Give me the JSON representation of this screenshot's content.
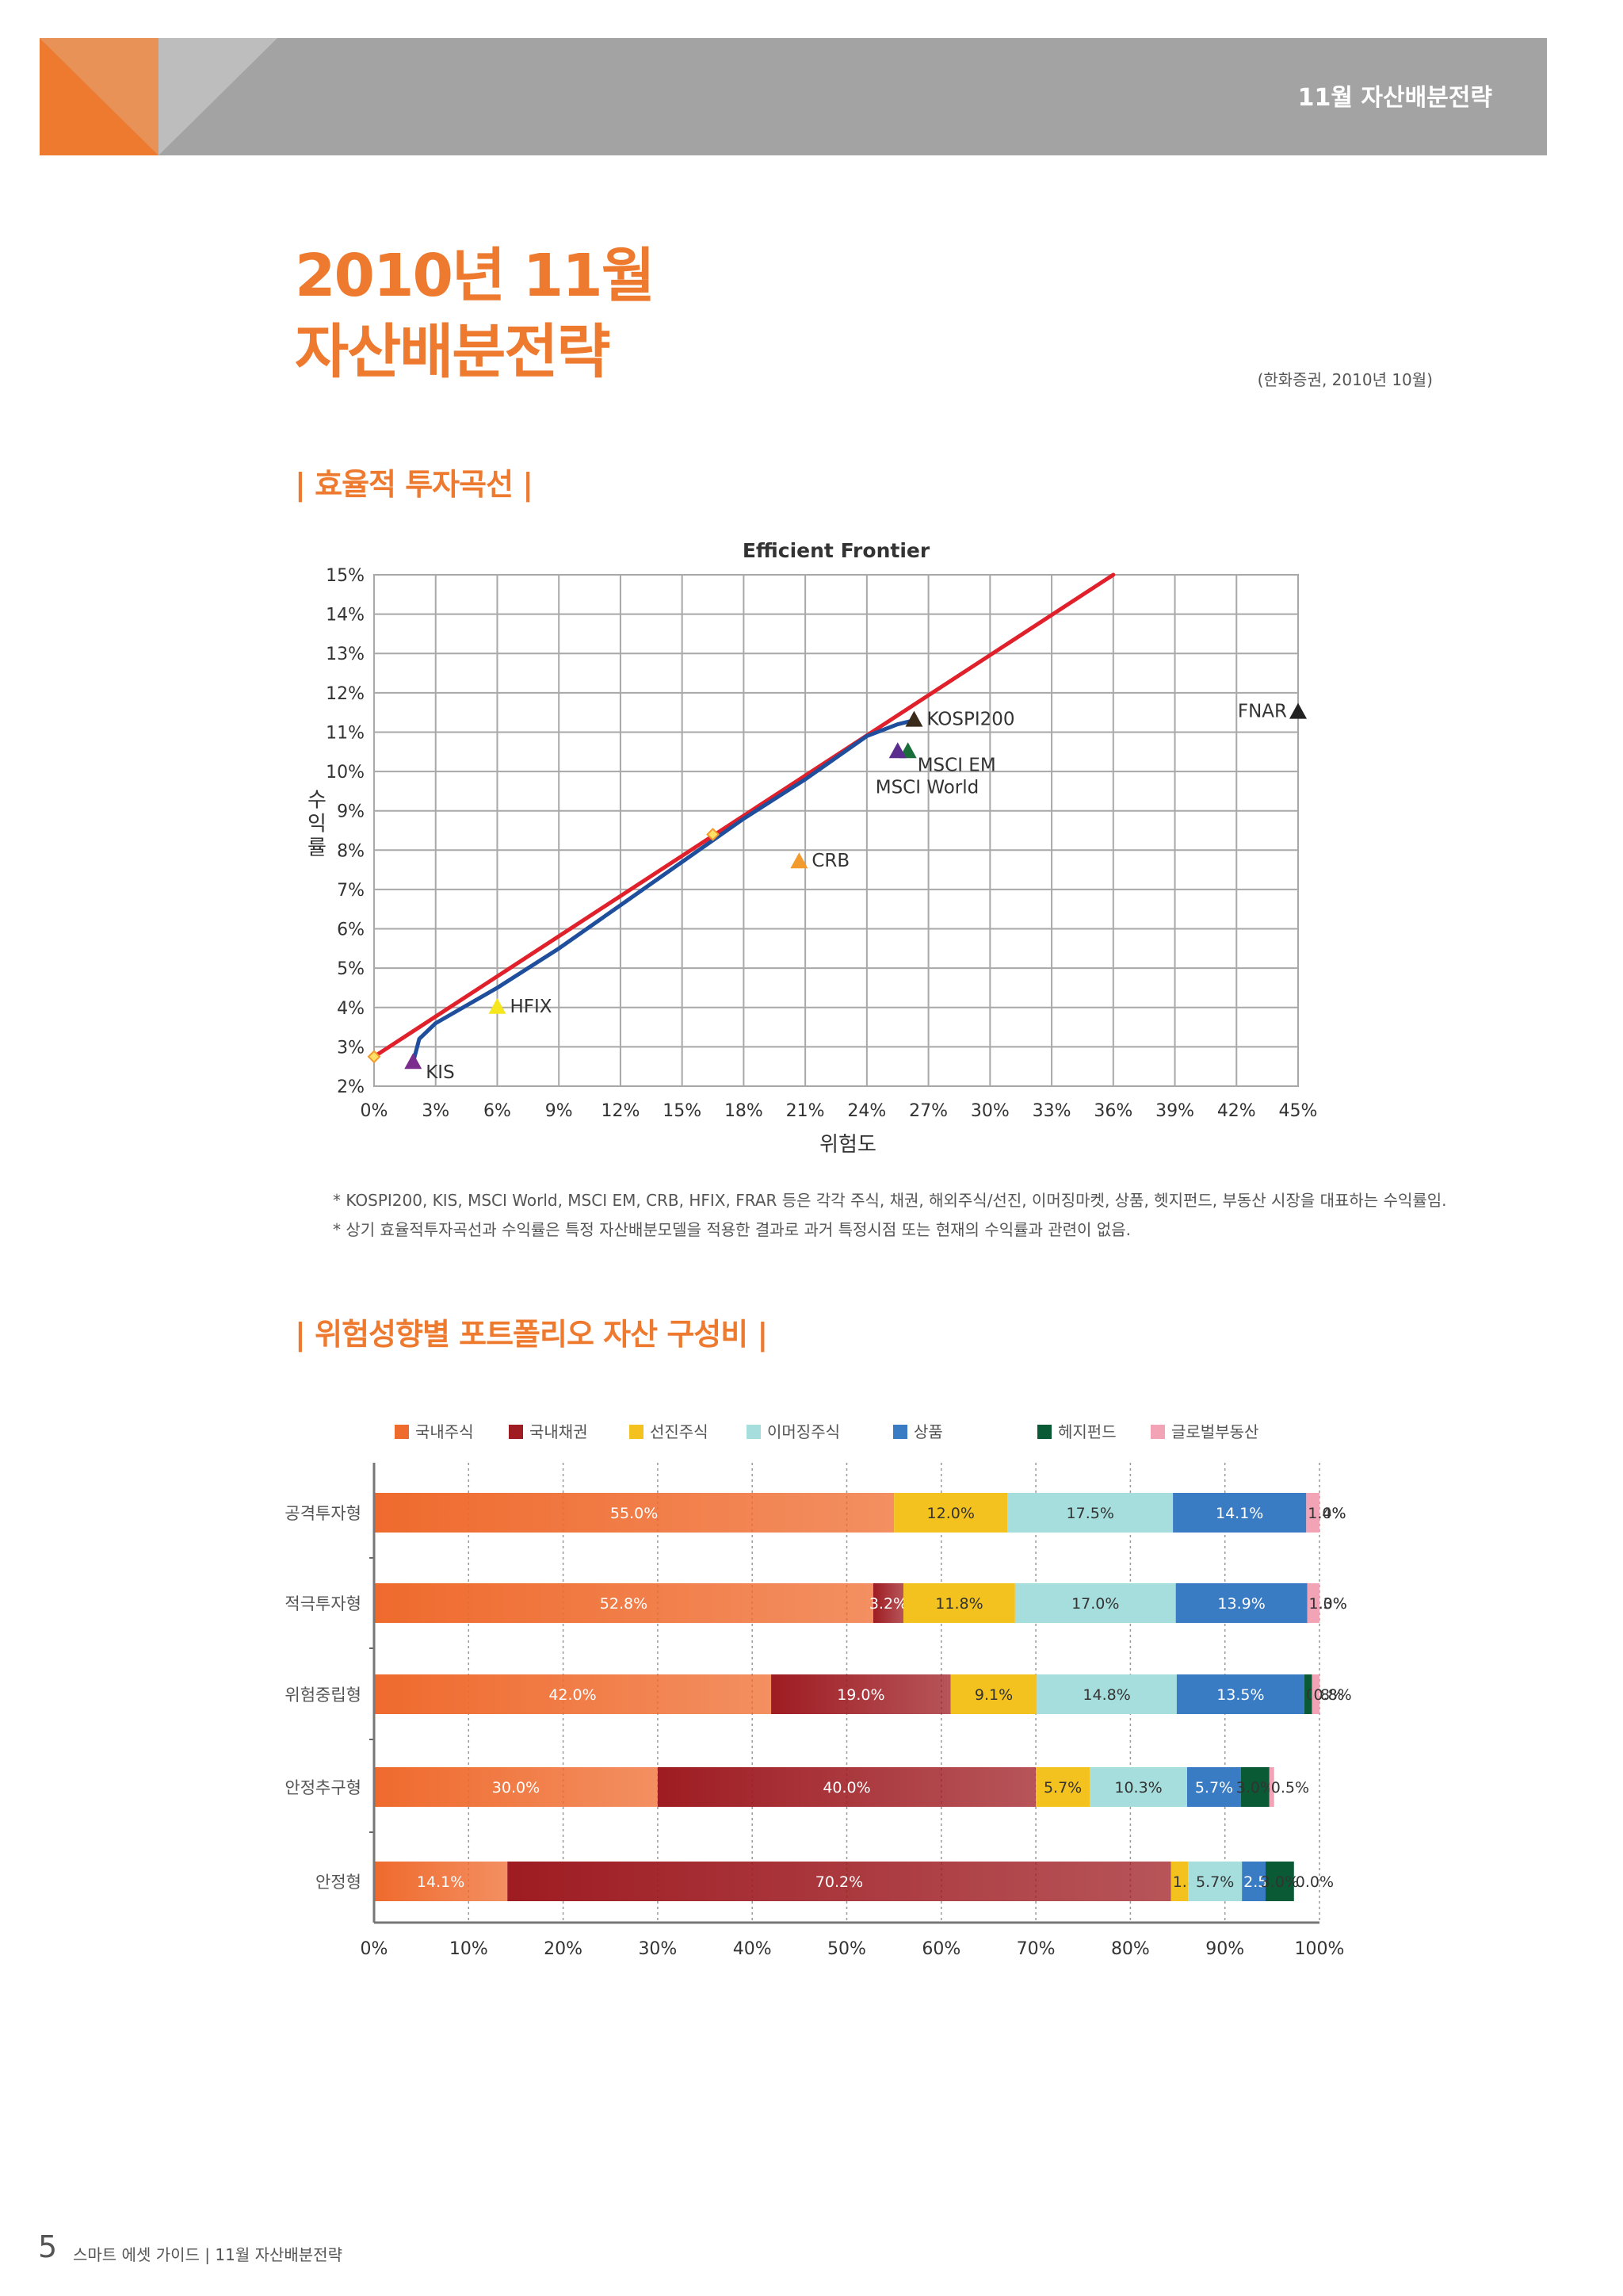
{
  "header": {
    "title": "11월  자산배분전략"
  },
  "page_title": {
    "line1": "2010년 11월",
    "line2": "자산배분전략"
  },
  "source_note": "(한화증권, 2010년 10월)",
  "section1": {
    "title": "| 효율적 투자곡선 |"
  },
  "section2": {
    "title": "| 위험성향별  포트폴리오 자산 구성비 |"
  },
  "footnotes": [
    "* KOSPI200, KIS, MSCI World, MSCI EM, CRB, HFIX, FRAR 등은 각각 주식, 채권, 해외주식/선진, 이머징마켓, 상품, 헷지펀드, 부동산 시장을 대표하는 수익률임.",
    "* 상기 효율적투자곡선과 수익률은 특정 자산배분모델을 적용한 결과로 과거 특정시점 또는 현재의 수익률과 관련이 없음."
  ],
  "footer": {
    "page_number": "5",
    "text": "스마트 에셋 가이드 | 11월 자산배분전략"
  },
  "colors": {
    "orange": "#ee7a2f",
    "header_gray": "#a3a3a3",
    "frontier_line": "#e0202a",
    "frontier_curve": "#1f4e9c"
  },
  "chart_data": [
    {
      "type": "scatter",
      "title": "Efficient Frontier",
      "xlabel": "위험도",
      "ylabel": "수익률",
      "xlim": [
        0,
        45
      ],
      "ylim": [
        2,
        15
      ],
      "x_ticks": [
        "0%",
        "3%",
        "6%",
        "9%",
        "12%",
        "15%",
        "18%",
        "21%",
        "24%",
        "27%",
        "30%",
        "33%",
        "36%",
        "39%",
        "42%",
        "45%"
      ],
      "y_ticks": [
        "2%",
        "3%",
        "4%",
        "5%",
        "6%",
        "7%",
        "8%",
        "9%",
        "10%",
        "11%",
        "12%",
        "13%",
        "14%",
        "15%"
      ],
      "grid": true,
      "points": [
        {
          "label": "KIS",
          "x": 1.9,
          "y": 2.6,
          "color": "#7b2d8e"
        },
        {
          "label": "HFIX",
          "x": 6,
          "y": 4.0,
          "color": "#f5e61e"
        },
        {
          "label": "CRB",
          "x": 20.7,
          "y": 7.7,
          "color": "#f39a2e"
        },
        {
          "label": "KOSPI200",
          "x": 26.3,
          "y": 11.3,
          "color": "#3a2a1a"
        },
        {
          "label": "MSCI EM",
          "x": 26,
          "y": 10.5,
          "color": "#1a6e3a"
        },
        {
          "label": "MSCI World",
          "x": 25.5,
          "y": 10.5,
          "color": "#5a2d8e"
        },
        {
          "label": "FNAR",
          "x": 45,
          "y": 11.5,
          "color": "#222222"
        }
      ],
      "lines": [
        {
          "name": "capital line",
          "color": "#e0202a",
          "points": [
            [
              0,
              2.75
            ],
            [
              36,
              15
            ]
          ]
        },
        {
          "name": "efficient frontier",
          "color": "#1f4e9c",
          "points": [
            [
              1.9,
              2.6
            ],
            [
              2.2,
              3.2
            ],
            [
              3,
              3.6
            ],
            [
              6,
              4.5
            ],
            [
              9,
              5.5
            ],
            [
              12,
              6.6
            ],
            [
              15,
              7.7
            ],
            [
              18,
              8.8
            ],
            [
              21,
              9.8
            ],
            [
              24,
              10.9
            ],
            [
              25.5,
              11.2
            ],
            [
              26.3,
              11.3
            ]
          ]
        }
      ],
      "markers": [
        {
          "x": 0,
          "y": 2.75,
          "color": "#f39a2e"
        },
        {
          "x": 16.5,
          "y": 8.4,
          "color": "#f39a2e"
        }
      ]
    },
    {
      "type": "bar",
      "orientation": "horizontal",
      "stacked": true,
      "xlim": [
        0,
        100
      ],
      "x_ticks": [
        "0%",
        "10%",
        "20%",
        "30%",
        "40%",
        "50%",
        "60%",
        "70%",
        "80%",
        "90%",
        "100%"
      ],
      "legend_placement": "top",
      "categories": [
        "공격투자형",
        "적극투자형",
        "위험중립형",
        "안정추구형",
        "안정형"
      ],
      "series": [
        {
          "name": "국내주식",
          "color": "#ef6a2d",
          "values": [
            55.0,
            52.8,
            42.0,
            30.0,
            14.1
          ],
          "labels": [
            "55.0%",
            "52.8%",
            "42.0%",
            "30.0%",
            "14.1%"
          ]
        },
        {
          "name": "국내채권",
          "color": "#9e1c22",
          "values": [
            0.0,
            3.2,
            19.0,
            40.0,
            70.2
          ],
          "labels": [
            "0.0%",
            "3.2%",
            "19.0%",
            "40.0%",
            "70.2%"
          ]
        },
        {
          "name": "선진주식",
          "color": "#f4c21e",
          "values": [
            12.0,
            11.8,
            9.1,
            5.7,
            1.8
          ],
          "labels": [
            "12.0%",
            "11.8%",
            "9.1%",
            "5.7%",
            "1.8%"
          ]
        },
        {
          "name": "이머징주식",
          "color": "#a6dedd",
          "values": [
            17.5,
            17.0,
            14.8,
            10.3,
            5.7
          ],
          "labels": [
            "17.5%",
            "17.0%",
            "14.8%",
            "10.3%",
            "5.7%"
          ]
        },
        {
          "name": "상품",
          "color": "#3a7cc4",
          "values": [
            14.1,
            13.9,
            13.5,
            5.7,
            2.5
          ],
          "labels": [
            "14.1%",
            "13.9%",
            "13.5%",
            "5.7%",
            "2.5%"
          ]
        },
        {
          "name": "헤지펀드",
          "color": "#0a5a35",
          "values": [
            0.0,
            0.0,
            0.8,
            3.0,
            3.0
          ],
          "labels": [
            "0.0%",
            "0.0%",
            "0.8%",
            "3.0%",
            "3.0%"
          ]
        },
        {
          "name": "글로벌부동산",
          "color": "#f2a3b6",
          "values": [
            1.4,
            1.3,
            0.8,
            0.5,
            0.0
          ],
          "labels": [
            "1.4%",
            "1.3%",
            "0.8%",
            "0.5%",
            "0.0%"
          ]
        }
      ]
    }
  ]
}
